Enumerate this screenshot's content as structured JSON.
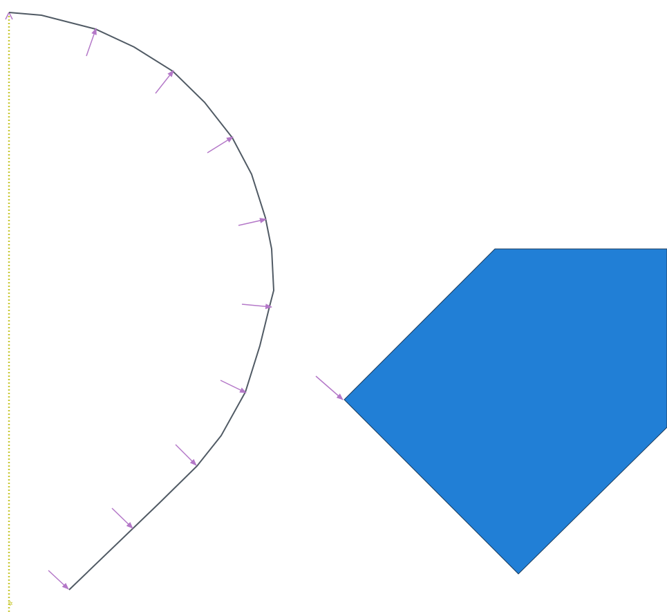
{
  "colors": {
    "background": "#ffffff",
    "axis_dotted": "#c8c832",
    "outline": "#505a64",
    "pressure_arrow": "#b478c8",
    "body_fill": "#217fd6",
    "body_edge": "#1a3a5a",
    "bc_symbol_blue": "#1a1ae6",
    "bc_symbol_orange": "#e6821e"
  },
  "icons": {
    "load": "pressure-arrow-icon",
    "boundary_condition": "boundary-condition-icon",
    "symmetry_axis": "symmetry-axis-line"
  }
}
